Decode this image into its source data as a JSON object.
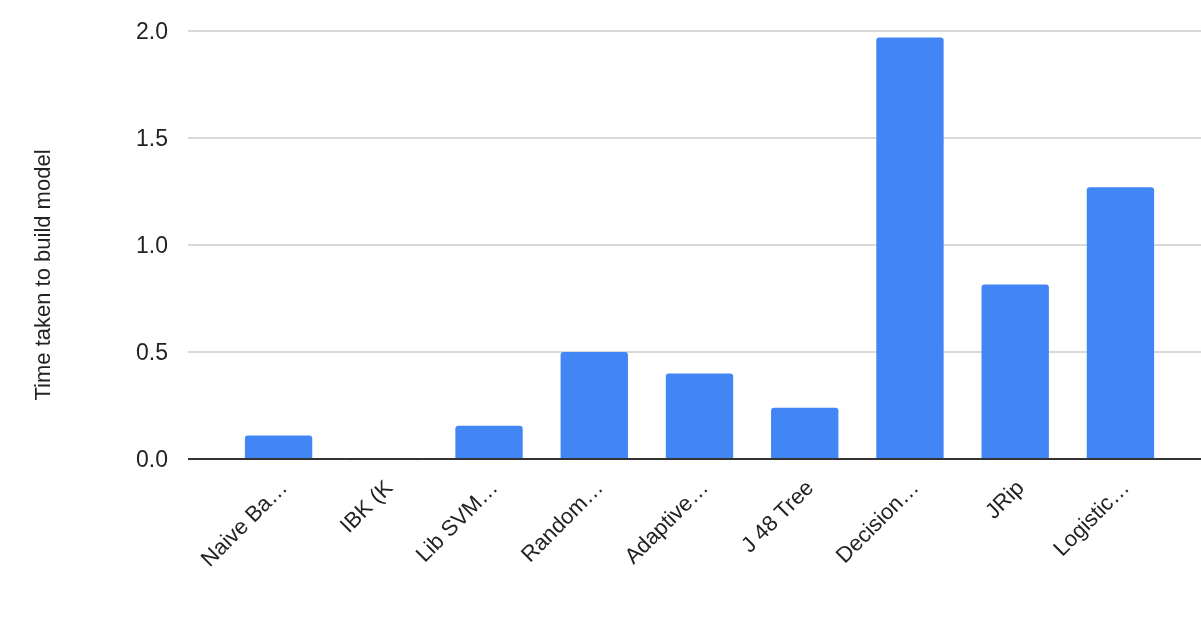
{
  "chart_data": {
    "type": "bar",
    "ylabel": "Time taken to build model",
    "categories": [
      "Naive Ba…",
      "IBK (K",
      "Lib SVM…",
      "Random…",
      "Adaptive…",
      "J 48 Tree",
      "Decision…",
      "JRip",
      "Logistic…"
    ],
    "values": [
      0.11,
      0,
      0.155,
      0.5,
      0.4,
      0.24,
      1.97,
      0.815,
      1.27
    ],
    "color": "#4285f4",
    "ylim": [
      0,
      2
    ],
    "yticks": [
      {
        "value": 0,
        "label": "0.0"
      },
      {
        "value": 0.5,
        "label": "0.5"
      },
      {
        "value": 1,
        "label": "1.0"
      },
      {
        "value": 1.5,
        "label": "1.5"
      },
      {
        "value": 2,
        "label": "2.0"
      }
    ],
    "grid": "y"
  }
}
